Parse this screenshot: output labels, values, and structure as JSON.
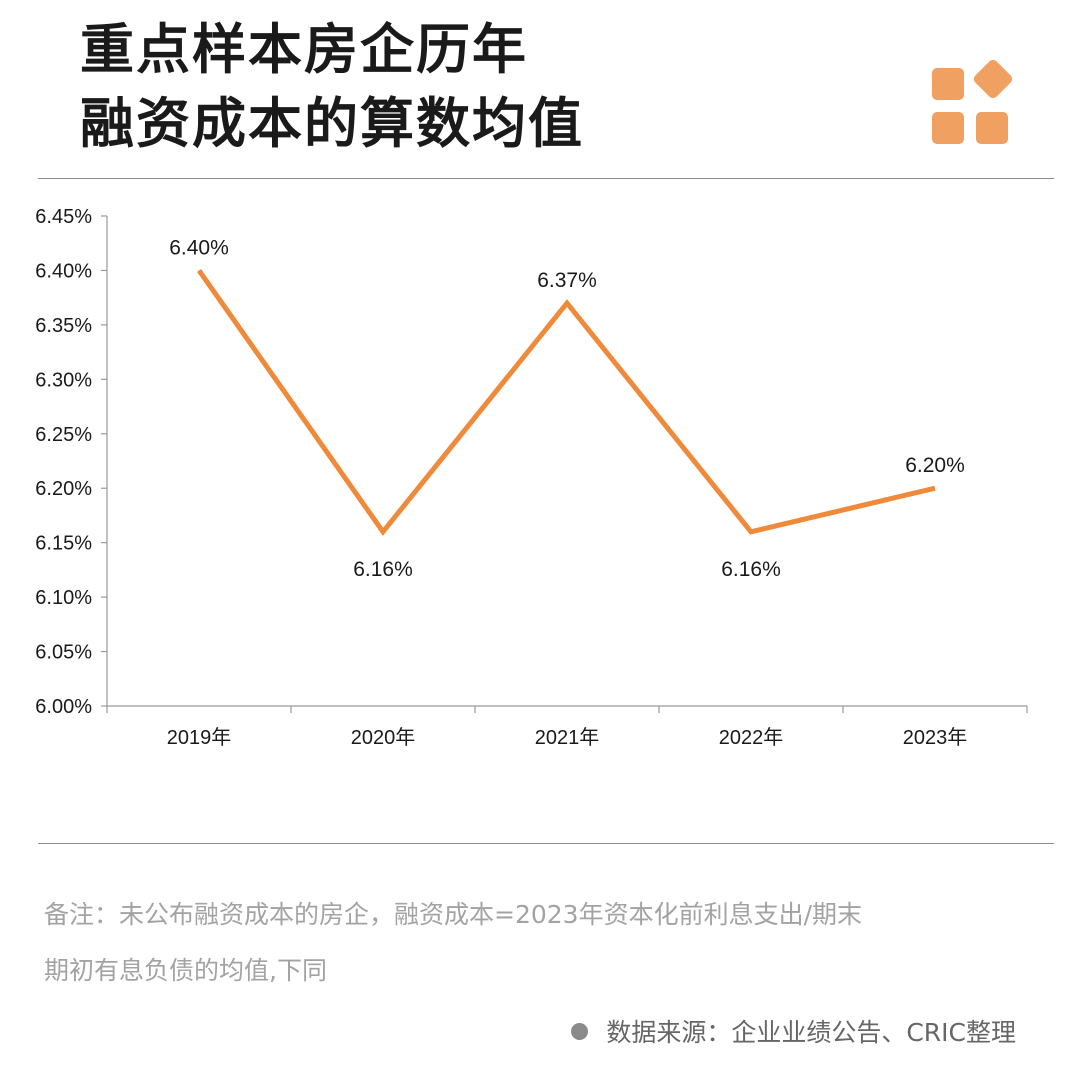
{
  "header": {
    "title_line1": "重点样本房企历年",
    "title_line2": "融资成本的算数均值"
  },
  "logo": {
    "color": "#f0a060",
    "icon": "four-squares-logo-icon"
  },
  "colors": {
    "line": "#ee8a3a",
    "axis": "#9a9a9a",
    "text": "#1a1a1a"
  },
  "chart_data": {
    "type": "line",
    "title": "",
    "xlabel": "",
    "ylabel": "",
    "categories": [
      "2019年",
      "2020年",
      "2021年",
      "2022年",
      "2023年"
    ],
    "series": [
      {
        "values": [
          6.4,
          6.16,
          6.37,
          6.16,
          6.2
        ]
      }
    ],
    "data_labels": [
      "6.40%",
      "6.16%",
      "6.37%",
      "6.16%",
      "6.20%"
    ],
    "y_ticks": [
      "6.00%",
      "6.05%",
      "6.10%",
      "6.15%",
      "6.20%",
      "6.25%",
      "6.30%",
      "6.35%",
      "6.40%",
      "6.45%"
    ],
    "ylim": [
      6.0,
      6.45
    ],
    "grid": false,
    "legend": "none"
  },
  "footer": {
    "note_line1": "备注：未公布融资成本的房企，融资成本=2023年资本化前利息支出/期末",
    "note_line2": "期初有息负债的均值,下同",
    "source": "数据来源：企业业绩公告、CRIC整理"
  }
}
